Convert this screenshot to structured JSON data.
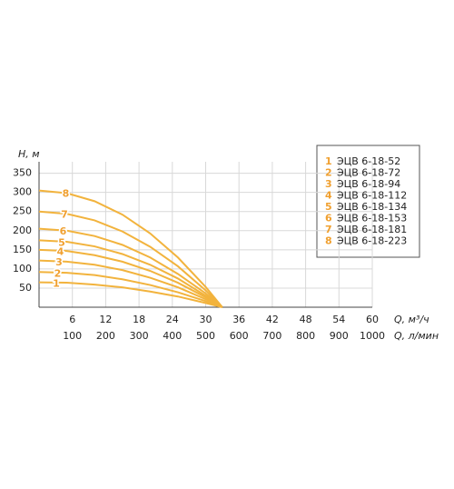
{
  "chart_data": {
    "type": "line",
    "ylabel": "H, м",
    "xlabel": "Q, м³/ч",
    "x2label": "Q, л/мин",
    "x": [
      0,
      5,
      10,
      15,
      20,
      25,
      30,
      33
    ],
    "xlim": [
      0,
      60
    ],
    "xticks": [
      6,
      12,
      18,
      24,
      30,
      36,
      42,
      48,
      54,
      60
    ],
    "x2lim": [
      0,
      1000
    ],
    "x2ticks": [
      100,
      200,
      300,
      400,
      500,
      600,
      700,
      800,
      900,
      1000
    ],
    "ylim": [
      0,
      380
    ],
    "yticks": [
      50,
      100,
      150,
      200,
      250,
      300,
      350
    ],
    "grid": true,
    "series": [
      {
        "label": "1",
        "name": "ЭЦВ 6-18-52",
        "color": "#f2b33d",
        "values": [
          65,
          64,
          59,
          52,
          41,
          28,
          11,
          0
        ]
      },
      {
        "label": "2",
        "name": "ЭЦВ 6-18-72",
        "color": "#f2b33d",
        "values": [
          92,
          90,
          84,
          73,
          58,
          39,
          16,
          0
        ]
      },
      {
        "label": "3",
        "name": "ЭЦВ 6-18-94",
        "color": "#f2b33d",
        "values": [
          122,
          119,
          111,
          97,
          77,
          52,
          21,
          0
        ]
      },
      {
        "label": "4",
        "name": "ЭЦВ 6-18-112",
        "color": "#f2b33d",
        "values": [
          150,
          147,
          136,
          119,
          95,
          64,
          26,
          0
        ]
      },
      {
        "label": "5",
        "name": "ЭЦВ 6-18-134",
        "color": "#f2b33d",
        "values": [
          175,
          171,
          159,
          139,
          111,
          75,
          30,
          0
        ]
      },
      {
        "label": "6",
        "name": "ЭЦВ 6-18-153",
        "color": "#f2b33d",
        "values": [
          205,
          200,
          186,
          163,
          130,
          87,
          36,
          0
        ]
      },
      {
        "label": "7",
        "name": "ЭЦВ 6-18-181",
        "color": "#f2b33d",
        "values": [
          250,
          244,
          227,
          198,
          158,
          107,
          44,
          0
        ]
      },
      {
        "label": "8",
        "name": "ЭЦВ 6-18-223",
        "color": "#f2b33d",
        "values": [
          305,
          298,
          277,
          242,
          193,
          130,
          53,
          0
        ]
      }
    ]
  }
}
